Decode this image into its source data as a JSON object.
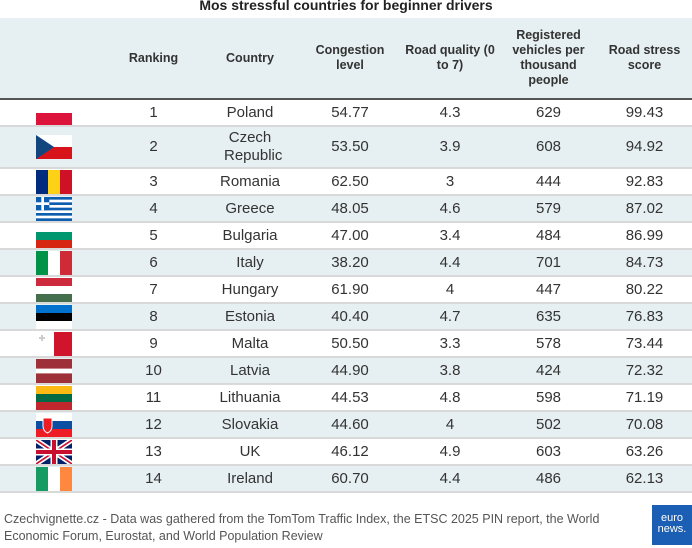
{
  "title": "Mos stressful countries for beginner drivers",
  "table": {
    "headers": [
      "Ranking",
      "Country",
      "Congestion level",
      "Road quality (0 to 7)",
      "Registered vehicles per thousand people",
      "Road stress score"
    ],
    "rows": [
      [
        "1",
        "Poland",
        "54.77",
        "4.3",
        "629",
        "99.43"
      ],
      [
        "2",
        "Czech Republic",
        "53.50",
        "3.9",
        "608",
        "94.92"
      ],
      [
        "3",
        "Romania",
        "62.50",
        "3",
        "444",
        "92.83"
      ],
      [
        "4",
        "Greece",
        "48.05",
        "4.6",
        "579",
        "87.02"
      ],
      [
        "5",
        "Bulgaria",
        "47.00",
        "3.4",
        "484",
        "86.99"
      ],
      [
        "6",
        "Italy",
        "38.20",
        "4.4",
        "701",
        "84.73"
      ],
      [
        "7",
        "Hungary",
        "61.90",
        "4",
        "447",
        "80.22"
      ],
      [
        "8",
        "Estonia",
        "40.40",
        "4.7",
        "635",
        "76.83"
      ],
      [
        "9",
        "Malta",
        "50.50",
        "3.3",
        "578",
        "73.44"
      ],
      [
        "10",
        "Latvia",
        "44.90",
        "3.8",
        "424",
        "72.32"
      ],
      [
        "11",
        "Lithuania",
        "44.53",
        "4.8",
        "598",
        "71.19"
      ],
      [
        "12",
        "Slovakia",
        "44.60",
        "4",
        "502",
        "70.08"
      ],
      [
        "13",
        "UK",
        "46.12",
        "4.9",
        "603",
        "63.26"
      ],
      [
        "14",
        "Ireland",
        "60.70",
        "4.4",
        "486",
        "62.13"
      ]
    ]
  },
  "footer": {
    "source": "Czechvignette.cz - Data was gathered from the TomTom Traffic Index, the ETSC 2025 PIN report, the World Economic Forum, Eurostat, and World Population Review",
    "logo": [
      "euro",
      "news."
    ]
  }
}
